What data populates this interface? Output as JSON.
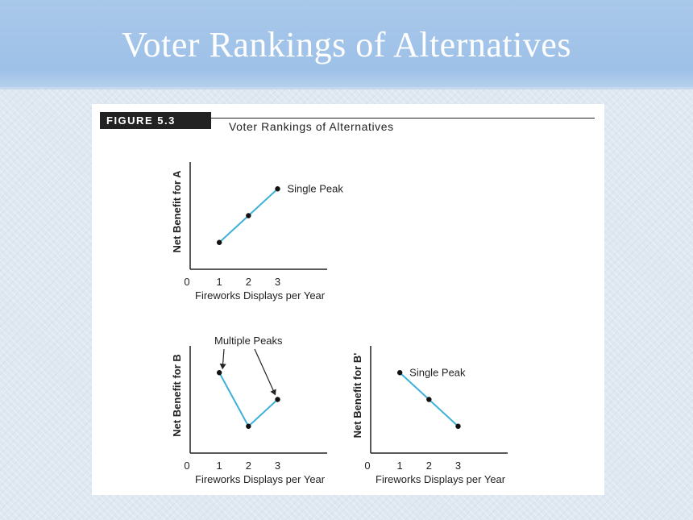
{
  "slide": {
    "title": "Voter Rankings of Alternatives"
  },
  "figure": {
    "label": "FIGURE 5.3",
    "caption": "Voter Rankings of Alternatives"
  },
  "colors": {
    "line": "#3fb0d8",
    "point": "#111111",
    "axis": "#222222"
  },
  "chart_data": [
    {
      "type": "line",
      "xlabel": "Fireworks Displays per Year",
      "ylabel": "Net Benefit for A",
      "x_ticks": [
        "0",
        "1",
        "2",
        "3"
      ],
      "xlim": [
        0,
        4.7
      ],
      "ylim": [
        0,
        4
      ],
      "x": [
        1,
        2,
        3
      ],
      "values": [
        1,
        2,
        3
      ],
      "annotation": {
        "text": "Single Peak",
        "x": 3,
        "y": 3
      }
    },
    {
      "type": "line",
      "xlabel": "Fireworks Displays per Year",
      "ylabel": "Net Benefit for B",
      "x_ticks": [
        "0",
        "1",
        "2",
        "3"
      ],
      "xlim": [
        0,
        4.7
      ],
      "ylim": [
        0,
        4
      ],
      "x": [
        1,
        2,
        3
      ],
      "values": [
        3,
        1,
        2
      ],
      "annotation": {
        "text": "Multiple Peaks",
        "arrows_to": [
          [
            1,
            3
          ],
          [
            3,
            2
          ]
        ]
      }
    },
    {
      "type": "line",
      "xlabel": "Fireworks Displays per Year",
      "ylabel": "Net Benefit for B'",
      "x_ticks": [
        "0",
        "1",
        "2",
        "3"
      ],
      "xlim": [
        0,
        4.7
      ],
      "ylim": [
        0,
        4
      ],
      "x": [
        1,
        2,
        3
      ],
      "values": [
        3,
        2,
        1
      ],
      "annotation": {
        "text": "Single Peak",
        "x": 1,
        "y": 3
      }
    }
  ]
}
